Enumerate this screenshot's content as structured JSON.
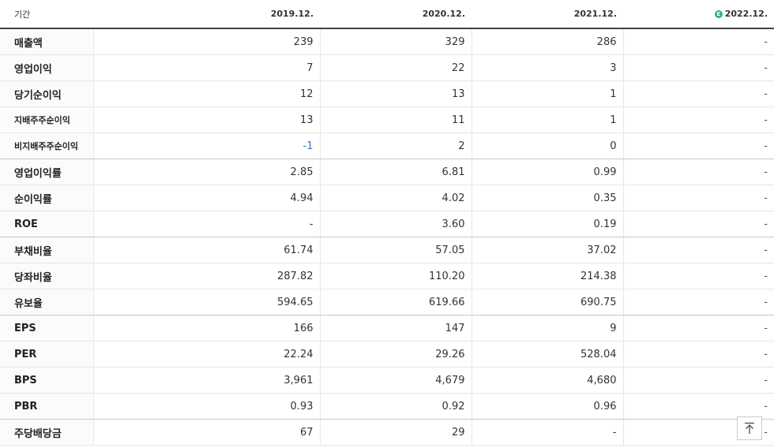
{
  "header": {
    "period_label": "기간",
    "years": [
      "2019.12.",
      "2020.12.",
      "2021.12.",
      "2022.12."
    ],
    "estimate_icon": "E"
  },
  "rows": [
    {
      "label": "매출액",
      "values": [
        "239",
        "329",
        "286",
        "-"
      ]
    },
    {
      "label": "영업이익",
      "values": [
        "7",
        "22",
        "3",
        "-"
      ]
    },
    {
      "label": "당기순이익",
      "values": [
        "12",
        "13",
        "1",
        "-"
      ]
    },
    {
      "label": "지배주주순이익",
      "values": [
        "13",
        "11",
        "1",
        "-"
      ]
    },
    {
      "label": "비지배주주순이익",
      "values": [
        "-1",
        "2",
        "0",
        "-"
      ]
    },
    {
      "label": "영업이익률",
      "values": [
        "2.85",
        "6.81",
        "0.99",
        "-"
      ]
    },
    {
      "label": "순이익률",
      "values": [
        "4.94",
        "4.02",
        "0.35",
        "-"
      ]
    },
    {
      "label": "ROE",
      "values": [
        "-",
        "3.60",
        "0.19",
        "-"
      ]
    },
    {
      "label": "부채비율",
      "values": [
        "61.74",
        "57.05",
        "37.02",
        "-"
      ]
    },
    {
      "label": "당좌비율",
      "values": [
        "287.82",
        "110.20",
        "214.38",
        "-"
      ]
    },
    {
      "label": "유보율",
      "values": [
        "594.65",
        "619.66",
        "690.75",
        "-"
      ]
    },
    {
      "label": "EPS",
      "values": [
        "166",
        "147",
        "9",
        "-"
      ]
    },
    {
      "label": "PER",
      "values": [
        "22.24",
        "29.26",
        "528.04",
        "-"
      ]
    },
    {
      "label": "BPS",
      "values": [
        "3,961",
        "4,679",
        "4,680",
        "-"
      ]
    },
    {
      "label": "PBR",
      "values": [
        "0.93",
        "0.92",
        "0.96",
        "-"
      ]
    },
    {
      "label": "주당배당금",
      "values": [
        "67",
        "29",
        "-",
        "-"
      ]
    }
  ],
  "colors": {
    "negative": "#3a6fc4",
    "estimate": "#2bb28d"
  },
  "scroll_top_icon": "arrow-up-to-top-icon"
}
